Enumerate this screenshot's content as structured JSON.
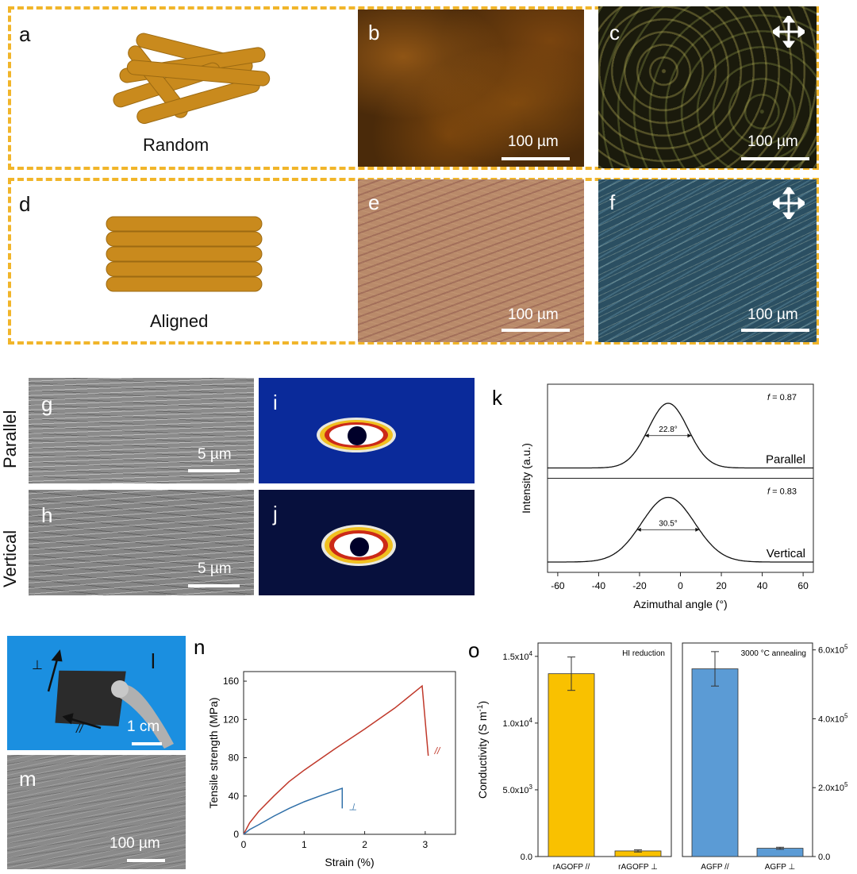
{
  "panels": {
    "a": {
      "label": "a",
      "caption": "Random"
    },
    "b": {
      "label": "b",
      "scale": "100 µm"
    },
    "c": {
      "label": "c",
      "scale": "100 µm"
    },
    "d": {
      "label": "d",
      "caption": "Aligned"
    },
    "e": {
      "label": "e",
      "scale": "100 µm"
    },
    "f": {
      "label": "f",
      "scale": "100 µm"
    },
    "g": {
      "label": "g",
      "scale": "5 µm",
      "row_label": "Parallel"
    },
    "h": {
      "label": "h",
      "scale": "5 µm",
      "row_label": "Vertical"
    },
    "i": {
      "label": "i"
    },
    "j": {
      "label": "j"
    },
    "l": {
      "label": "l",
      "scale": "1 cm",
      "perp_symbol": "⊥",
      "par_symbol": "//"
    },
    "m": {
      "label": "m",
      "scale": "100 µm"
    }
  },
  "chart_data": [
    {
      "id": "k",
      "label": "k",
      "type": "line",
      "xlabel": "Azimuthal angle (°)",
      "ylabel": "Intensity (a.u.)",
      "xlim": [
        -65,
        65
      ],
      "xticks": [
        -60,
        -40,
        -20,
        0,
        20,
        40,
        60
      ],
      "series": [
        {
          "name": "Parallel",
          "center": -6,
          "fwhm": 22.8,
          "fwhm_label": "22.8°",
          "f_label": "f",
          "f_value": " = 0.87"
        },
        {
          "name": "Vertical",
          "center": -6,
          "fwhm": 30.5,
          "fwhm_label": "30.5°",
          "f_label": "f",
          "f_value": " = 0.83"
        }
      ]
    },
    {
      "id": "n",
      "label": "n",
      "type": "line",
      "xlabel": "Strain (%)",
      "ylabel": "Tensile strength (MPa)",
      "xlim": [
        0,
        3.5
      ],
      "ylim": [
        0,
        170
      ],
      "xticks": [
        0,
        1,
        2,
        3
      ],
      "yticks": [
        0,
        40,
        80,
        120,
        160
      ],
      "series": [
        {
          "name": "//",
          "color": "#c0392b",
          "x": [
            0,
            0.1,
            0.25,
            0.5,
            0.75,
            1.0,
            1.5,
            2.0,
            2.5,
            2.95,
            3.05
          ],
          "y": [
            0,
            12,
            24,
            40,
            55,
            67,
            89,
            110,
            132,
            155,
            82
          ]
        },
        {
          "name": "⊥",
          "color": "#2f6fa8",
          "x": [
            0,
            0.1,
            0.25,
            0.5,
            0.75,
            1.0,
            1.3,
            1.63,
            1.63
          ],
          "y": [
            0,
            5,
            10,
            19,
            27,
            34,
            41,
            48,
            27
          ]
        }
      ]
    },
    {
      "id": "o",
      "label": "o",
      "type": "bar",
      "ylabel": "Conductivity (S m",
      "ylabel_sup": "-1",
      "ylabel_end": ")",
      "left": {
        "title": "HI reduction",
        "color": "#f9c100",
        "categories": [
          "rAGOFP //",
          "rAGOFP ⊥"
        ],
        "values": [
          13700,
          420
        ],
        "errors": [
          1250,
          80
        ],
        "ylim": [
          0,
          16000
        ],
        "ticks": [
          0,
          5000,
          10000,
          15000
        ],
        "tick_labels": [
          "0.0",
          "5.0x10",
          "1.0x10",
          "1.5x10"
        ],
        "tick_sups": [
          "",
          "3",
          "4",
          "4"
        ]
      },
      "right": {
        "title": "3000 °C annealing",
        "color": "#5b9bd5",
        "categories": [
          "AGFP //",
          "AGFP ⊥"
        ],
        "values": [
          545000,
          24000
        ],
        "errors": [
          50000,
          3000
        ],
        "ylim": [
          0,
          620000
        ],
        "ticks": [
          0,
          200000,
          400000,
          600000
        ],
        "tick_labels": [
          "0.0",
          "2.0x10",
          "4.0x10",
          "6.0x10"
        ],
        "tick_sups": [
          "",
          "5",
          "5",
          "5"
        ]
      }
    }
  ]
}
